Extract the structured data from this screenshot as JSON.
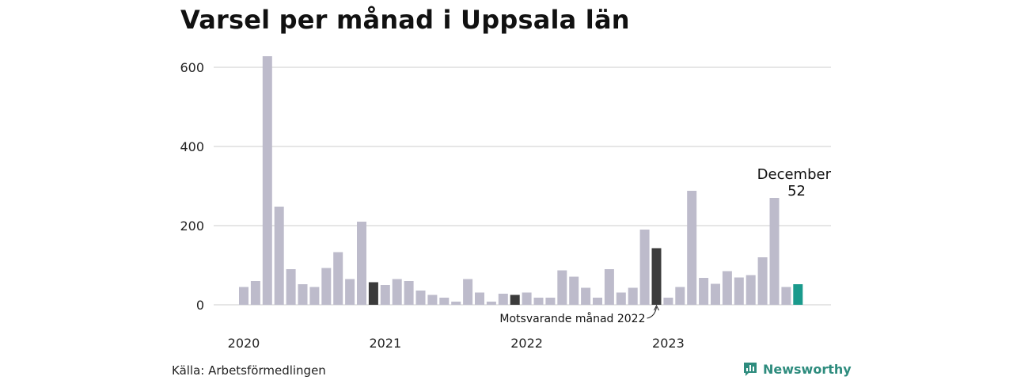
{
  "title": "Varsel per månad i Uppsala län",
  "source": "Källa: Arbetsförmedlingen",
  "brand": {
    "name": "Newsworthy",
    "icon": "newsworthy-logo-icon"
  },
  "colors": {
    "bar": "#bdbbcb",
    "highlight": "#3b3b3b",
    "current": "#1a9a8c",
    "grid": "#dddddd"
  },
  "chart_data": {
    "type": "bar",
    "title": "Varsel per månad i Uppsala län",
    "xlabel": "",
    "ylabel": "",
    "ylim": [
      0,
      650
    ],
    "yticks": [
      0,
      200,
      400,
      600
    ],
    "year_labels": [
      {
        "label": "2020",
        "index": 0
      },
      {
        "label": "2021",
        "index": 12
      },
      {
        "label": "2022",
        "index": 24
      },
      {
        "label": "2023",
        "index": 36
      }
    ],
    "values": [
      45,
      60,
      628,
      248,
      90,
      52,
      45,
      93,
      133,
      65,
      210,
      57,
      50,
      65,
      60,
      36,
      25,
      18,
      8,
      65,
      31,
      8,
      28,
      25,
      31,
      18,
      18,
      87,
      71,
      43,
      18,
      90,
      31,
      43,
      190,
      143,
      18,
      45,
      288,
      68,
      53,
      85,
      69,
      75,
      120,
      270,
      45,
      52
    ],
    "highlight_indices": [
      11,
      23,
      35
    ],
    "current_index": 47,
    "current_label": "December",
    "current_value": "52",
    "annotation": "Motsvarande månad 2022",
    "annotation_index": 35,
    "grid": true
  }
}
